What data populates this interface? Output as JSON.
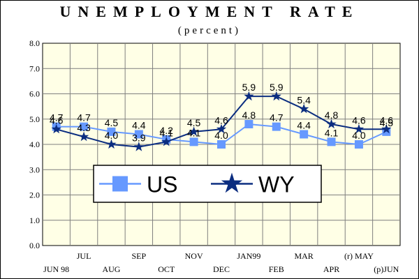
{
  "title": "UNEMPLOYMENT RATE",
  "subtitle": "(percent)",
  "colors": {
    "plot_bg": "#ffffe6",
    "grid": "#7f7f7f",
    "us": "#6699ff",
    "wy": "#0b2d80"
  },
  "chart_data": {
    "type": "line",
    "title": "UNEMPLOYMENT RATE",
    "subtitle": "(percent)",
    "categories": [
      "JUN 98",
      "JUL",
      "AUG",
      "SEP",
      "OCT",
      "NOV",
      "DEC",
      "JAN99",
      "FEB",
      "MAR",
      "APR",
      "(r) MAY",
      "(p)JUN"
    ],
    "series": [
      {
        "name": "US",
        "marker": "square",
        "color": "#6699ff",
        "values": [
          4.7,
          4.7,
          4.5,
          4.4,
          4.2,
          4.1,
          4.0,
          4.8,
          4.7,
          4.4,
          4.1,
          4.0,
          4.5
        ],
        "labels": [
          "4.7",
          "4.7",
          "4.5",
          "4.4",
          "4.2",
          "4.1",
          "4.0",
          "4.8",
          "4.7",
          "4.4",
          "4.1",
          "4.0",
          "4.5"
        ]
      },
      {
        "name": "WY",
        "marker": "star",
        "color": "#0b2d80",
        "values": [
          4.6,
          4.3,
          4.0,
          3.9,
          4.1,
          4.5,
          4.6,
          5.9,
          5.9,
          5.4,
          4.8,
          4.6,
          4.6
        ],
        "labels": [
          "4.6",
          "4.3",
          "4.0",
          "3.9",
          "4.1",
          "4.5",
          "4.6",
          "5.9",
          "5.9",
          "5.4",
          "4.8",
          "4.6",
          "4.6"
        ]
      }
    ],
    "yticks": [
      "0.0",
      "1.0",
      "2.0",
      "3.0",
      "4.0",
      "5.0",
      "6.0",
      "7.0",
      "8.0"
    ],
    "ylim": [
      0,
      8
    ],
    "grid": true,
    "legend": {
      "position": "lower-center",
      "entries": [
        "US",
        "WY"
      ]
    }
  }
}
